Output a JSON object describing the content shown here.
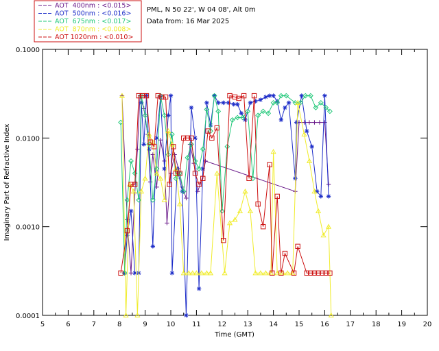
{
  "header": {
    "station": "PML, N 50 22', W 04 08', Alt 0m",
    "date": "Data from: 16 Mar 2025"
  },
  "chart_data": {
    "type": "line",
    "xlabel": "Time (GMT)",
    "ylabel": "Imaginary Part of Refractive Index",
    "xlim": [
      5,
      20
    ],
    "ylim": [
      0.0001,
      0.1
    ],
    "yscale": "log",
    "x_ticks": [
      5,
      6,
      7,
      8,
      9,
      10,
      11,
      12,
      13,
      14,
      15,
      16,
      17,
      18,
      19,
      20
    ],
    "y_ticks": [
      0.0001,
      0.001,
      0.01,
      0.1
    ],
    "y_tick_labels": [
      "0.0001",
      "0.0010",
      "0.0100",
      "0.1000"
    ],
    "legend_position": "top-left",
    "series": [
      {
        "name": "AOT  400nm : <0.015>",
        "color": "#6a1a8a",
        "marker": "plus",
        "points": [
          [
            8.1,
            0.03
          ],
          [
            8.3,
            0.0012
          ],
          [
            8.45,
            0.0003
          ],
          [
            8.6,
            0.0024
          ],
          [
            8.7,
            0.0075
          ],
          [
            8.8,
            0.03
          ],
          [
            8.95,
            0.0215
          ],
          [
            9.1,
            0.011
          ],
          [
            9.2,
            0.0032
          ],
          [
            9.3,
            0.0065
          ],
          [
            9.45,
            0.0028
          ],
          [
            9.6,
            0.0095
          ],
          [
            9.75,
            0.0055
          ],
          [
            9.85,
            0.0011
          ],
          [
            10.0,
            0.004
          ],
          [
            10.15,
            0.0065
          ],
          [
            10.3,
            0.0045
          ],
          [
            10.45,
            0.0028
          ],
          [
            10.6,
            0.0021
          ],
          [
            10.75,
            0.0085
          ],
          [
            10.9,
            0.0052
          ],
          [
            11.05,
            0.0025
          ],
          [
            11.25,
            0.0037
          ],
          [
            11.35,
            0.0055
          ],
          [
            14.85,
            0.0025
          ],
          [
            15.0,
            0.015
          ],
          [
            15.2,
            0.015
          ],
          [
            15.4,
            0.015
          ],
          [
            15.6,
            0.015
          ],
          [
            15.8,
            0.015
          ],
          [
            16.0,
            0.015
          ],
          [
            16.15,
            0.003
          ]
        ]
      },
      {
        "name": "AOT  500nm : <0.016>",
        "color": "#1c2cc8",
        "marker": "star",
        "points": [
          [
            8.2,
            0.0003
          ],
          [
            8.3,
            0.0008
          ],
          [
            8.45,
            0.0015
          ],
          [
            8.6,
            0.0003
          ],
          [
            8.75,
            0.0003
          ],
          [
            8.85,
            0.025
          ],
          [
            8.95,
            0.0085
          ],
          [
            9.05,
            0.03
          ],
          [
            9.15,
            0.0075
          ],
          [
            9.3,
            0.0006
          ],
          [
            9.45,
            0.01
          ],
          [
            9.6,
            0.029
          ],
          [
            9.75,
            0.0045
          ],
          [
            9.9,
            0.018
          ],
          [
            10.0,
            0.03
          ],
          [
            10.05,
            0.0003
          ],
          [
            10.25,
            0.0045
          ],
          [
            10.45,
            0.0025
          ],
          [
            10.6,
            0.0001
          ],
          [
            10.8,
            0.022
          ],
          [
            10.95,
            0.01
          ],
          [
            11.1,
            0.0002
          ],
          [
            11.25,
            0.0045
          ],
          [
            11.4,
            0.025
          ],
          [
            11.55,
            0.014
          ],
          [
            11.7,
            0.03
          ],
          [
            11.85,
            0.025
          ],
          [
            12.05,
            0.025
          ],
          [
            12.25,
            0.025
          ],
          [
            12.45,
            0.024
          ],
          [
            12.6,
            0.024
          ],
          [
            12.75,
            0.019
          ],
          [
            12.9,
            0.016
          ],
          [
            13.1,
            0.025
          ],
          [
            13.3,
            0.026
          ],
          [
            13.5,
            0.027
          ],
          [
            13.7,
            0.029
          ],
          [
            13.85,
            0.03
          ],
          [
            14.0,
            0.03
          ],
          [
            14.15,
            0.026
          ],
          [
            14.3,
            0.016
          ],
          [
            14.45,
            0.022
          ],
          [
            14.6,
            0.025
          ],
          [
            14.85,
            0.0035
          ],
          [
            14.9,
            0.015
          ],
          [
            15.1,
            0.03
          ],
          [
            15.3,
            0.012
          ],
          [
            15.5,
            0.008
          ],
          [
            15.7,
            0.0025
          ],
          [
            15.85,
            0.0022
          ],
          [
            16.0,
            0.03
          ],
          [
            16.15,
            0.0022
          ]
        ]
      },
      {
        "name": "AOT  675nm : <0.017>",
        "color": "#22c87a",
        "marker": "diamond",
        "points": [
          [
            8.05,
            0.015
          ],
          [
            8.2,
            0.0003
          ],
          [
            8.3,
            0.002
          ],
          [
            8.45,
            0.0055
          ],
          [
            8.6,
            0.004
          ],
          [
            8.75,
            0.002
          ],
          [
            8.85,
            0.03
          ],
          [
            9.0,
            0.018
          ],
          [
            9.15,
            0.0085
          ],
          [
            9.3,
            0.002
          ],
          [
            9.45,
            0.0045
          ],
          [
            9.6,
            0.03
          ],
          [
            9.75,
            0.018
          ],
          [
            9.9,
            0.0065
          ],
          [
            10.05,
            0.011
          ],
          [
            10.2,
            0.0035
          ],
          [
            10.35,
            0.004
          ],
          [
            10.5,
            0.0025
          ],
          [
            10.65,
            0.006
          ],
          [
            10.8,
            0.0085
          ],
          [
            10.95,
            0.0055
          ],
          [
            11.1,
            0.0045
          ],
          [
            11.25,
            0.0075
          ],
          [
            11.4,
            0.021
          ],
          [
            11.55,
            0.012
          ],
          [
            11.7,
            0.03
          ],
          [
            11.85,
            0.02
          ],
          [
            12.0,
            0.0015
          ],
          [
            12.2,
            0.008
          ],
          [
            12.4,
            0.016
          ],
          [
            12.6,
            0.017
          ],
          [
            12.8,
            0.017
          ],
          [
            13.0,
            0.02
          ],
          [
            13.2,
            0.0035
          ],
          [
            13.4,
            0.018
          ],
          [
            13.6,
            0.02
          ],
          [
            13.8,
            0.019
          ],
          [
            14.0,
            0.025
          ],
          [
            14.15,
            0.025
          ],
          [
            14.3,
            0.03
          ],
          [
            14.5,
            0.03
          ],
          [
            14.85,
            0.025
          ],
          [
            15.05,
            0.025
          ],
          [
            15.25,
            0.03
          ],
          [
            15.45,
            0.03
          ],
          [
            15.65,
            0.022
          ],
          [
            15.85,
            0.025
          ],
          [
            16.05,
            0.022
          ],
          [
            16.2,
            0.02
          ]
        ]
      },
      {
        "name": "AOT  870nm : <0.008>",
        "color": "#f0ec2a",
        "marker": "triangle",
        "points": [
          [
            8.1,
            0.03
          ],
          [
            8.25,
            0.0001
          ],
          [
            8.4,
            0.003
          ],
          [
            8.55,
            0.0025
          ],
          [
            8.7,
            0.0001
          ],
          [
            8.85,
            0.0025
          ],
          [
            9.0,
            0.0035
          ],
          [
            9.15,
            0.011
          ],
          [
            9.3,
            0.009
          ],
          [
            9.45,
            0.004
          ],
          [
            9.6,
            0.0035
          ],
          [
            9.75,
            0.002
          ],
          [
            9.9,
            0.012
          ],
          [
            10.05,
            0.0085
          ],
          [
            10.2,
            0.0045
          ],
          [
            10.35,
            0.0018
          ],
          [
            10.5,
            0.0003
          ],
          [
            10.7,
            0.0003
          ],
          [
            10.85,
            0.0003
          ],
          [
            11.0,
            0.0003
          ],
          [
            11.2,
            0.0003
          ],
          [
            11.4,
            0.0003
          ],
          [
            11.55,
            0.0003
          ],
          [
            11.8,
            0.004
          ],
          [
            12.1,
            0.0003
          ],
          [
            12.3,
            0.0011
          ],
          [
            12.5,
            0.0012
          ],
          [
            12.7,
            0.0015
          ],
          [
            12.9,
            0.0025
          ],
          [
            13.1,
            0.0015
          ],
          [
            13.3,
            0.0003
          ],
          [
            13.5,
            0.0003
          ],
          [
            13.7,
            0.0003
          ],
          [
            13.9,
            0.0003
          ],
          [
            14.0,
            0.007
          ],
          [
            14.15,
            0.0003
          ],
          [
            14.35,
            0.0003
          ],
          [
            14.55,
            0.0003
          ],
          [
            14.75,
            0.0003
          ],
          [
            14.95,
            0.025
          ],
          [
            15.2,
            0.011
          ],
          [
            15.4,
            0.0055
          ],
          [
            15.6,
            0.0025
          ],
          [
            15.75,
            0.0015
          ],
          [
            15.95,
            0.0008
          ],
          [
            16.15,
            0.001
          ],
          [
            16.25,
            0.0001
          ]
        ]
      },
      {
        "name": "AOT 1020nm : <0.010>",
        "color": "#cc1010",
        "marker": "square",
        "points": [
          [
            8.05,
            0.0003
          ],
          [
            8.3,
            0.0009
          ],
          [
            8.45,
            0.003
          ],
          [
            8.6,
            0.003
          ],
          [
            8.75,
            0.03
          ],
          [
            8.9,
            0.03
          ],
          [
            9.05,
            0.03
          ],
          [
            9.2,
            0.009
          ],
          [
            9.35,
            0.008
          ],
          [
            9.5,
            0.03
          ],
          [
            9.65,
            0.029
          ],
          [
            9.8,
            0.029
          ],
          [
            9.95,
            0.003
          ],
          [
            10.1,
            0.008
          ],
          [
            10.2,
            0.004
          ],
          [
            10.35,
            0.004
          ],
          [
            10.5,
            0.01
          ],
          [
            10.65,
            0.01
          ],
          [
            10.8,
            0.01
          ],
          [
            10.95,
            0.004
          ],
          [
            11.1,
            0.003
          ],
          [
            11.25,
            0.0035
          ],
          [
            11.45,
            0.012
          ],
          [
            11.6,
            0.01
          ],
          [
            11.8,
            0.013
          ],
          [
            12.05,
            0.0007
          ],
          [
            12.3,
            0.03
          ],
          [
            12.5,
            0.029
          ],
          [
            12.65,
            0.028
          ],
          [
            12.85,
            0.03
          ],
          [
            13.05,
            0.0035
          ],
          [
            13.25,
            0.03
          ],
          [
            13.4,
            0.0018
          ],
          [
            13.6,
            0.001
          ],
          [
            13.85,
            0.005
          ],
          [
            13.95,
            0.0003
          ],
          [
            14.15,
            0.0022
          ],
          [
            14.3,
            0.0003
          ],
          [
            14.45,
            0.0005
          ],
          [
            14.8,
            0.0003
          ],
          [
            14.95,
            0.0006
          ],
          [
            15.3,
            0.0003
          ],
          [
            15.45,
            0.0003
          ],
          [
            15.6,
            0.0003
          ],
          [
            15.75,
            0.0003
          ],
          [
            15.9,
            0.0003
          ],
          [
            16.05,
            0.0003
          ],
          [
            16.2,
            0.0003
          ]
        ]
      }
    ]
  }
}
